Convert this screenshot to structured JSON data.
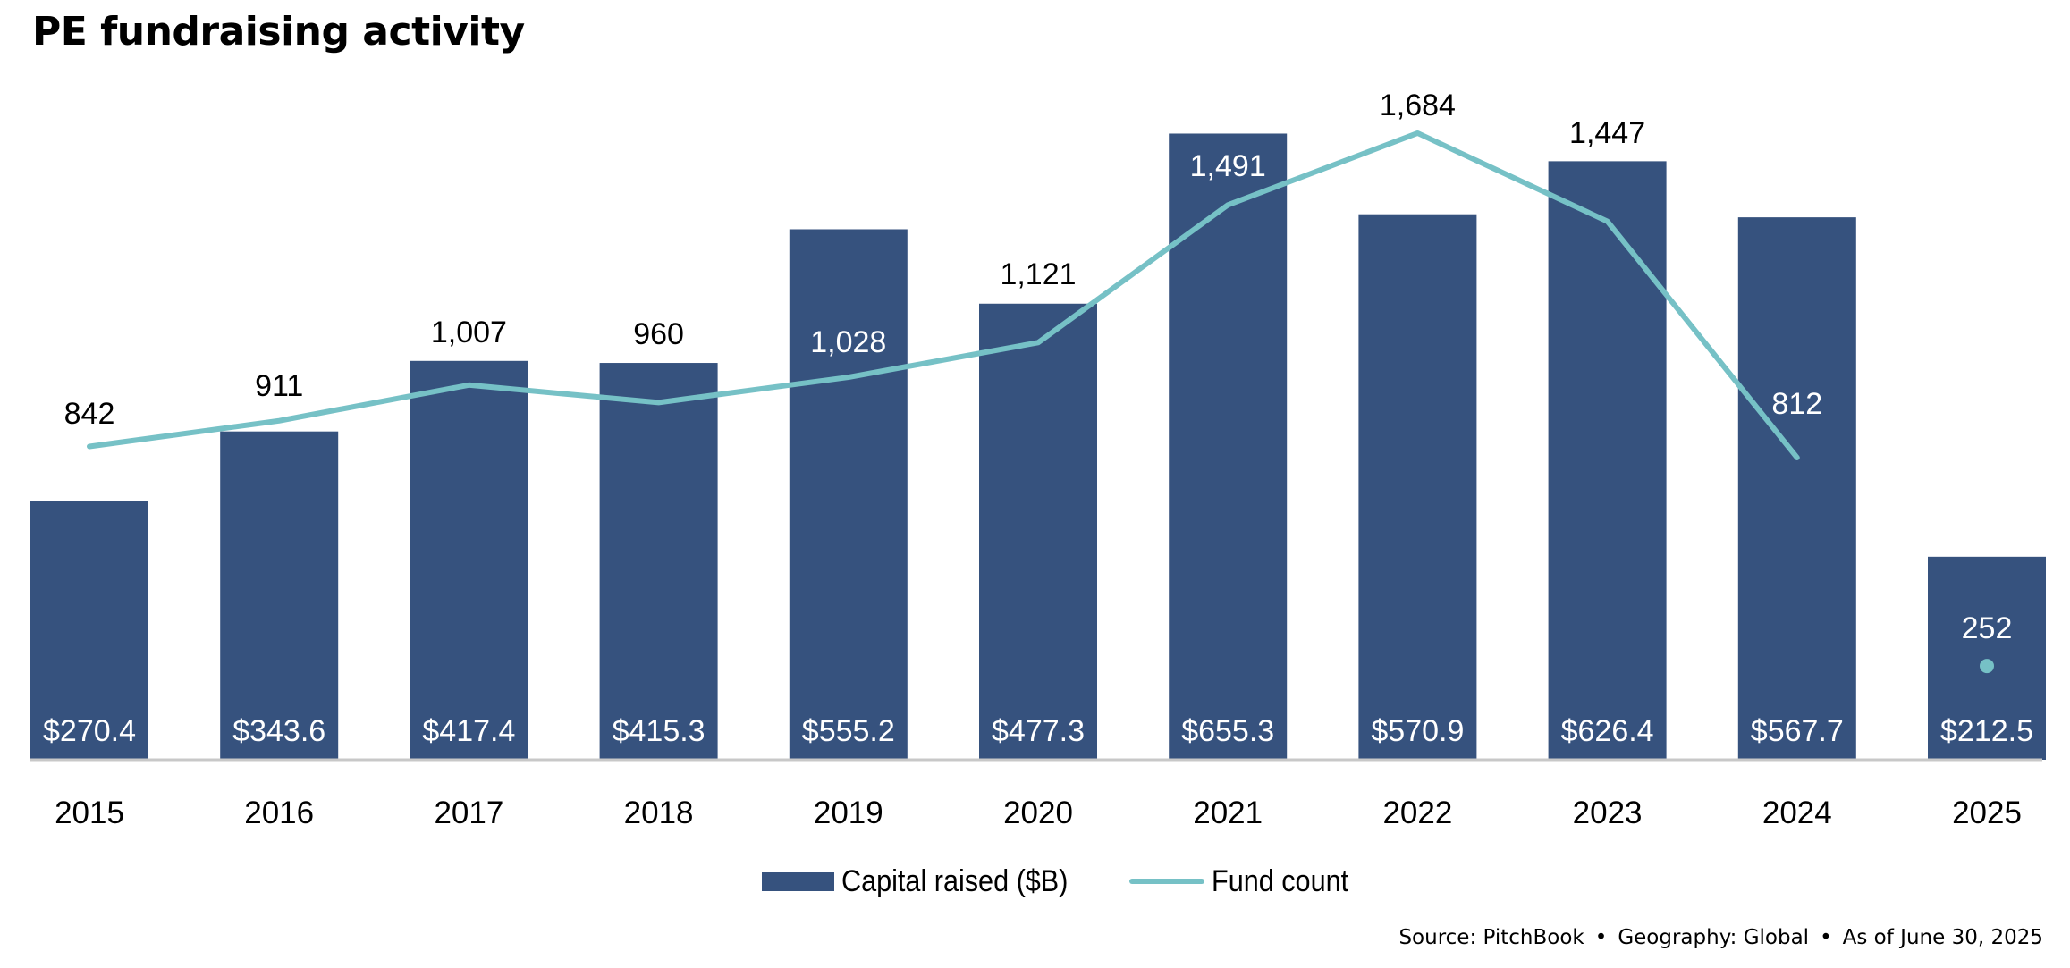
{
  "chart_data": {
    "type": "bar+line",
    "title": "PE fundraising activity",
    "categories": [
      "2015",
      "2016",
      "2017",
      "2018",
      "2019",
      "2020",
      "2021",
      "2022",
      "2023",
      "2024",
      "2025"
    ],
    "series": [
      {
        "name": "Capital raised ($B)",
        "type": "bar",
        "color": "#36527E",
        "values": [
          270.4,
          343.6,
          417.4,
          415.3,
          555.2,
          477.3,
          655.3,
          570.9,
          626.4,
          567.7,
          212.5
        ],
        "labels": [
          "$270.4",
          "$343.6",
          "$417.4",
          "$415.3",
          "$555.2",
          "$477.3",
          "$655.3",
          "$570.9",
          "$626.4",
          "$567.7",
          "$212.5"
        ]
      },
      {
        "name": "Fund count",
        "type": "line",
        "color": "#76C1C6",
        "values": [
          842,
          911,
          1007,
          960,
          1028,
          1121,
          1491,
          1684,
          1447,
          812,
          252
        ],
        "labels": [
          "842",
          "911",
          "1,007",
          "960",
          "1,028",
          "1,121",
          "1,491",
          "1,684",
          "1,447",
          "812",
          "252"
        ],
        "note": "2025 shown as standalone point (partial year)"
      }
    ],
    "xlabel": "",
    "ylabel": "",
    "ylim_bar": [
      0,
      800
    ],
    "ylim_line": [
      0,
      2040
    ],
    "grid": false,
    "legend_position": "bottom-center",
    "source": "Source: PitchBook • Geography: Global • As of June 30, 2025"
  },
  "title": "PE fundraising activity",
  "legend": {
    "items": [
      {
        "label": "Capital raised ($B)",
        "color": "#36527E",
        "kind": "bar"
      },
      {
        "label": "Fund count",
        "color": "#76C1C6",
        "kind": "line"
      }
    ]
  },
  "footer": {
    "source": "Source: PitchBook",
    "geography": "Geography: Global",
    "as_of": "As of June 30, 2025",
    "separator": "•"
  },
  "colors": {
    "bar": "#36527E",
    "line": "#76C1C6",
    "axis": "#C8C8C8",
    "text": "#000000"
  }
}
